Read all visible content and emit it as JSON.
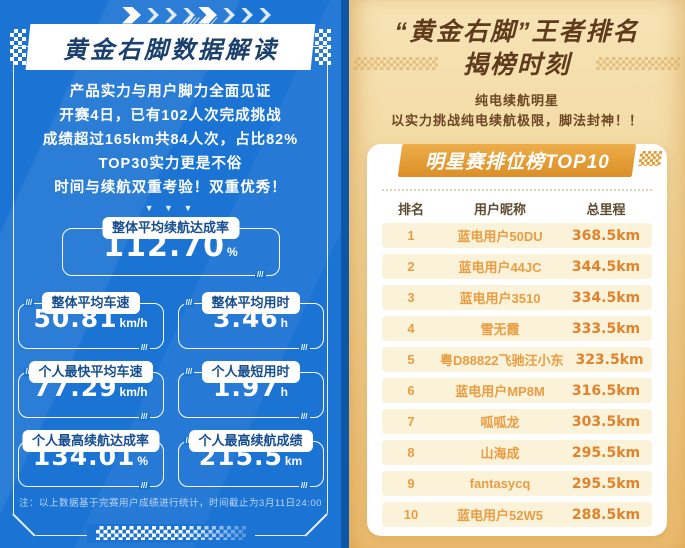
{
  "deco": {
    "hazard": "///",
    "slashes": "//// ////",
    "triangles": "▼ ▼ ▼"
  },
  "left": {
    "title": "黄金右脚数据解读",
    "intro": [
      "产品实力与用户脚力全面见证",
      "开赛4日，已有102人次完成挑战",
      "成绩超过165km共84人次，占比82%",
      "TOP30实力更是不俗",
      "时间与续航双重考验！双重优秀！"
    ],
    "stats": [
      {
        "label": "整体平均续航达成率",
        "value": "112.70",
        "unit": "%"
      },
      {
        "label": "整体平均车速",
        "value": "50.81",
        "unit": "km/h"
      },
      {
        "label": "整体平均用时",
        "value": "3.46",
        "unit": "h"
      },
      {
        "label": "个人最快平均车速",
        "value": "77.29",
        "unit": "km/h"
      },
      {
        "label": "个人最短用时",
        "value": "1.97",
        "unit": "h"
      },
      {
        "label": "个人最高续航达成率",
        "value": "134.01",
        "unit": "%"
      },
      {
        "label": "个人最高续航成绩",
        "value": "215.5",
        "unit": "km"
      }
    ],
    "footnote": "注：以上数据基于完赛用户成绩进行统计，时间截止为3月11日24:00"
  },
  "right": {
    "title_line1": "“黄金右脚”王者排名",
    "title_line2": "揭榜时刻",
    "subtitle_line1": "纯电续航明星",
    "subtitle_line2": "以实力挑战纯电续航极限，脚法封神！！",
    "board_title": "明星赛排位榜TOP10",
    "table": {
      "headers": [
        "排名",
        "用户昵称",
        "总里程"
      ],
      "rows": [
        {
          "rank": "1",
          "name": "蓝电用户50DU",
          "mileage": "368.5km"
        },
        {
          "rank": "2",
          "name": "蓝电用户44JC",
          "mileage": "344.5km"
        },
        {
          "rank": "3",
          "name": "蓝电用户3510",
          "mileage": "334.5km"
        },
        {
          "rank": "4",
          "name": "雪无霞",
          "mileage": "333.5km"
        },
        {
          "rank": "5",
          "name": "粤D88822飞驰汪小东",
          "mileage": "323.5km"
        },
        {
          "rank": "6",
          "name": "蓝电用户MP8M",
          "mileage": "316.5km"
        },
        {
          "rank": "7",
          "name": "呱呱龙",
          "mileage": "303.5km"
        },
        {
          "rank": "8",
          "name": "山海成",
          "mileage": "295.5km"
        },
        {
          "rank": "9",
          "name": "fantasycq",
          "mileage": "295.5km"
        },
        {
          "rank": "10",
          "name": "蓝电用户52W5",
          "mileage": "288.5km"
        }
      ]
    }
  },
  "colors": {
    "left_background": "#1B73D3",
    "left_edge": "#0D57A9",
    "left_title_text": "#1C406E",
    "stat_label_text": "#174E8F",
    "right_background_top": "#F6E3B6",
    "right_background_bottom": "#EFC177",
    "right_title_text": "#5F3B1D",
    "board_banner_gold": "#E29A33",
    "row_background": "#FBF2DA",
    "row_name_orange": "#E99D42",
    "row_mileage_orange": "#E0832C"
  }
}
